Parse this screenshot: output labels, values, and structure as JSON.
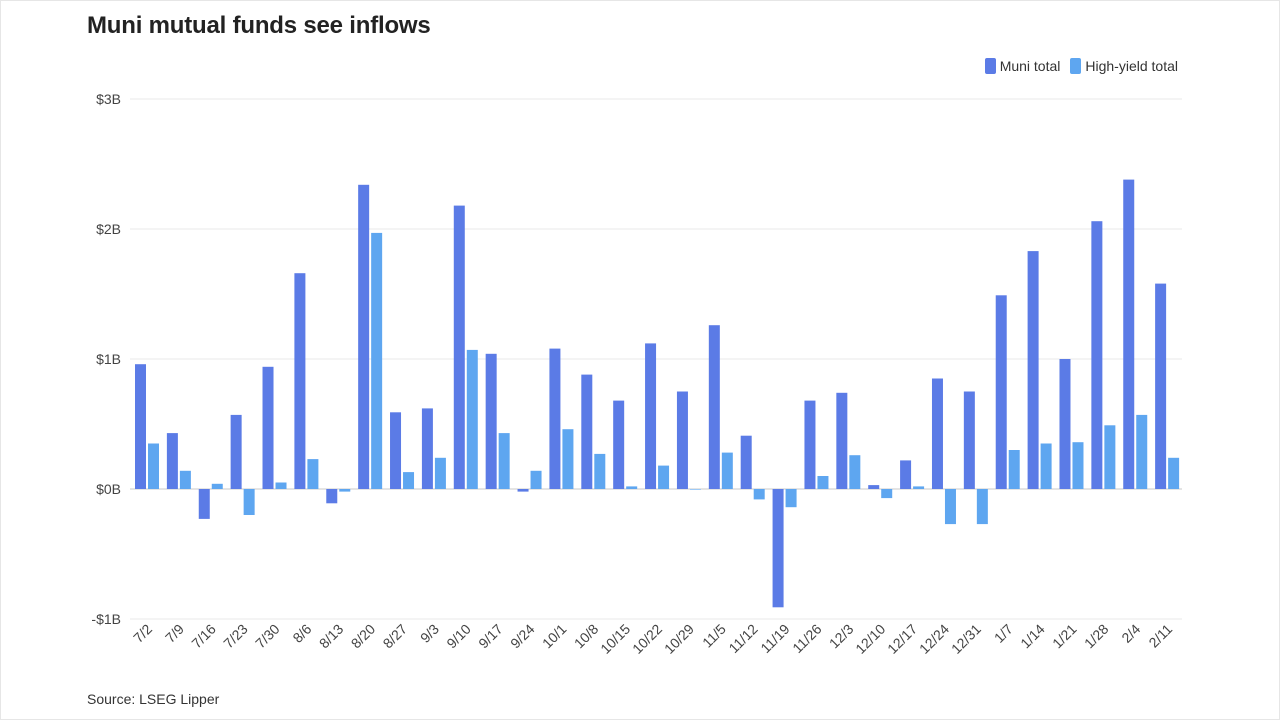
{
  "title": "Muni mutual funds see inflows",
  "source": "Source: LSEG Lipper",
  "colors": {
    "muni": "#5b7be6",
    "high_yield": "#5ea6f0",
    "grid": "#e8e8e8",
    "zero_line": "#c8c8c8"
  },
  "chart_data": {
    "type": "bar",
    "title": "Muni mutual funds see inflows",
    "xlabel": "",
    "ylabel": "",
    "ylim": [
      -1,
      3
    ],
    "yticks": [
      {
        "value": 3,
        "label": "$3B"
      },
      {
        "value": 2,
        "label": "$2B"
      },
      {
        "value": 1,
        "label": "$1B"
      },
      {
        "value": 0,
        "label": "$0B"
      },
      {
        "value": -1,
        "label": "-$1B"
      }
    ],
    "grid": true,
    "legend": "top-right",
    "categories": [
      "7/2",
      "7/9",
      "7/16",
      "7/23",
      "7/30",
      "8/6",
      "8/13",
      "8/20",
      "8/27",
      "9/3",
      "9/10",
      "9/17",
      "9/24",
      "10/1",
      "10/8",
      "10/15",
      "10/22",
      "10/29",
      "11/5",
      "11/12",
      "11/19",
      "11/26",
      "12/3",
      "12/10",
      "12/17",
      "12/24",
      "12/31",
      "1/7",
      "1/14",
      "1/21",
      "1/28",
      "2/4",
      "2/11"
    ],
    "series": [
      {
        "name": "Muni total",
        "values": [
          0.96,
          0.43,
          -0.23,
          0.57,
          0.94,
          1.66,
          -0.11,
          2.34,
          0.59,
          0.62,
          2.18,
          1.04,
          -0.02,
          1.08,
          0.88,
          0.68,
          1.12,
          0.75,
          1.26,
          0.41,
          -0.91,
          0.68,
          0.74,
          0.03,
          0.22,
          0.85,
          0.75,
          1.49,
          1.83,
          1.0,
          2.06,
          2.38,
          1.58
        ]
      },
      {
        "name": "High-yield total",
        "values": [
          0.35,
          0.14,
          0.04,
          -0.2,
          0.05,
          0.23,
          -0.02,
          1.97,
          0.13,
          0.24,
          1.07,
          0.43,
          0.14,
          0.46,
          0.27,
          0.02,
          0.18,
          0.0,
          0.28,
          -0.08,
          -0.14,
          0.1,
          0.26,
          -0.07,
          0.02,
          -0.27,
          -0.27,
          0.3,
          0.35,
          0.36,
          0.49,
          0.57,
          0.24
        ]
      }
    ]
  }
}
